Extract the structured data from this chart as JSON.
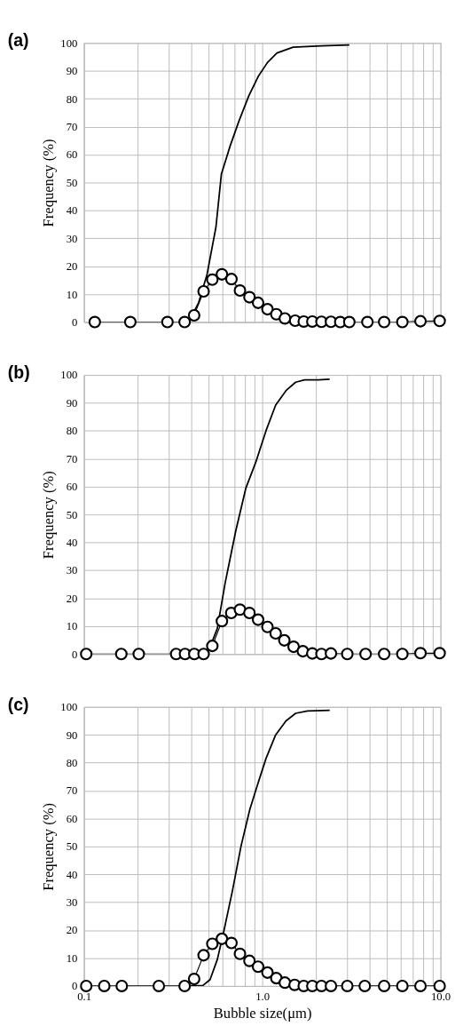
{
  "chart_data": [
    {
      "type": "line",
      "title": "(a)",
      "ylabel": "Frequency (%)",
      "log": "x",
      "grid": true,
      "tick_labels": "y",
      "xlim": [
        0.1,
        10
      ],
      "ylim": [
        0,
        100
      ],
      "xticks": [
        {
          "value": 0.1,
          "label": null
        },
        {
          "value": 0.2,
          "label": null
        },
        {
          "value": 0.3,
          "label": null
        },
        {
          "value": 0.4,
          "label": null
        },
        {
          "value": 0.5,
          "label": null
        },
        {
          "value": 0.6,
          "label": null
        },
        {
          "value": 0.7,
          "label": null
        },
        {
          "value": 0.8,
          "label": null
        },
        {
          "value": 0.9,
          "label": null
        },
        {
          "value": 1,
          "label": null
        },
        {
          "value": 2,
          "label": null
        },
        {
          "value": 3,
          "label": null
        },
        {
          "value": 4,
          "label": null
        },
        {
          "value": 5,
          "label": null
        },
        {
          "value": 6,
          "label": null
        },
        {
          "value": 7,
          "label": null
        },
        {
          "value": 8,
          "label": null
        },
        {
          "value": 9,
          "label": null
        },
        {
          "value": 10,
          "label": null
        }
      ],
      "yticks": [
        0,
        10,
        20,
        30,
        40,
        50,
        60,
        70,
        80,
        90,
        100
      ],
      "series": [
        {
          "marker": "none",
          "color": "#000000",
          "x": [
            0.39,
            0.44,
            0.49,
            0.55,
            0.59,
            0.66,
            0.74,
            0.84,
            0.95,
            1.07,
            1.21,
            1.49,
            1.79,
            2.15,
            3.08
          ],
          "values": [
            0.5,
            7,
            17,
            34,
            53,
            63,
            72,
            81,
            88,
            93,
            96.4,
            98.5,
            98.7,
            99,
            99.3
          ]
        },
        {
          "marker": "circle",
          "color": "#000000",
          "x": [
            0.115,
            0.182,
            0.294,
            0.367,
            0.415,
            0.469,
            0.525,
            0.594,
            0.672,
            0.75,
            0.848,
            0.948,
            1.07,
            1.2,
            1.34,
            1.53,
            1.71,
            1.91,
            2.15,
            2.43,
            2.74,
            3.08,
            3.89,
            4.83,
            6.11,
            7.72,
            9.89
          ],
          "values": [
            0,
            0,
            0,
            0,
            2.4,
            11,
            15.2,
            17.1,
            15.4,
            11.3,
            8.9,
            6.9,
            4.6,
            2.8,
            1.3,
            0.5,
            0.2,
            0.2,
            0.1,
            0.1,
            0,
            0,
            0,
            0,
            0,
            0.3,
            0.4
          ]
        }
      ]
    },
    {
      "type": "line",
      "title": "(b)",
      "ylabel": "Frequency (%)",
      "log": "x",
      "grid": true,
      "tick_labels": "y",
      "xlim": [
        0.1,
        10
      ],
      "ylim": [
        0,
        100
      ],
      "xticks": [
        {
          "value": 0.1,
          "label": null
        },
        {
          "value": 0.2,
          "label": null
        },
        {
          "value": 0.3,
          "label": null
        },
        {
          "value": 0.4,
          "label": null
        },
        {
          "value": 0.5,
          "label": null
        },
        {
          "value": 0.6,
          "label": null
        },
        {
          "value": 0.7,
          "label": null
        },
        {
          "value": 0.8,
          "label": null
        },
        {
          "value": 0.9,
          "label": null
        },
        {
          "value": 1,
          "label": null
        },
        {
          "value": 2,
          "label": null
        },
        {
          "value": 3,
          "label": null
        },
        {
          "value": 4,
          "label": null
        },
        {
          "value": 5,
          "label": null
        },
        {
          "value": 6,
          "label": null
        },
        {
          "value": 7,
          "label": null
        },
        {
          "value": 8,
          "label": null
        },
        {
          "value": 9,
          "label": null
        },
        {
          "value": 10,
          "label": null
        }
      ],
      "yticks": [
        0,
        10,
        20,
        30,
        40,
        50,
        60,
        70,
        80,
        90,
        100
      ],
      "series": [
        {
          "marker": "none",
          "color": "#000000",
          "x": [
            0.5,
            0.56,
            0.62,
            0.71,
            0.81,
            0.92,
            1.05,
            1.19,
            1.36,
            1.54,
            1.73,
            2.07,
            2.39
          ],
          "values": [
            1,
            9.2,
            25.6,
            44,
            59.5,
            68.7,
            80,
            89.2,
            94.4,
            97.4,
            98.2,
            98.2,
            98.5
          ]
        },
        {
          "marker": "circle",
          "color": "#000000",
          "x": [
            0.103,
            0.162,
            0.203,
            0.329,
            0.369,
            0.416,
            0.469,
            0.525,
            0.594,
            0.67,
            0.75,
            0.848,
            0.948,
            1.07,
            1.19,
            1.33,
            1.5,
            1.69,
            1.91,
            2.15,
            2.43,
            3.0,
            3.8,
            4.83,
            6.11,
            7.72,
            9.89
          ],
          "values": [
            0,
            0,
            0,
            0,
            0,
            0,
            0,
            2.9,
            11.8,
            14.7,
            15.9,
            14.7,
            12.3,
            9.7,
            7.4,
            4.9,
            2.6,
            1,
            0.2,
            0,
            0.2,
            0,
            0,
            0,
            0,
            0.3,
            0.3
          ]
        }
      ]
    },
    {
      "type": "line",
      "title": "(c)",
      "ylabel": "Frequency (%)",
      "xlabel": "Bubble size(μm)",
      "log": "x",
      "grid": true,
      "xlim": [
        0.1,
        10
      ],
      "ylim": [
        0,
        100
      ],
      "xticks": [
        {
          "value": 0.1,
          "label": "0.1"
        },
        {
          "value": 0.2,
          "label": null
        },
        {
          "value": 0.3,
          "label": null
        },
        {
          "value": 0.4,
          "label": null
        },
        {
          "value": 0.5,
          "label": null
        },
        {
          "value": 0.6,
          "label": null
        },
        {
          "value": 0.7,
          "label": null
        },
        {
          "value": 0.8,
          "label": null
        },
        {
          "value": 0.9,
          "label": null
        },
        {
          "value": 1,
          "label": "1.0"
        },
        {
          "value": 2,
          "label": null
        },
        {
          "value": 3,
          "label": null
        },
        {
          "value": 4,
          "label": null
        },
        {
          "value": 5,
          "label": null
        },
        {
          "value": 6,
          "label": null
        },
        {
          "value": 7,
          "label": null
        },
        {
          "value": 8,
          "label": null
        },
        {
          "value": 9,
          "label": null
        },
        {
          "value": 10,
          "label": "10.0"
        }
      ],
      "yticks": [
        0,
        10,
        20,
        30,
        40,
        50,
        60,
        70,
        80,
        90,
        100
      ],
      "series": [
        {
          "marker": "none",
          "color": "#000000",
          "x": [
            0.39,
            0.465,
            0.51,
            0.56,
            0.61,
            0.68,
            0.76,
            0.85,
            0.94,
            1.05,
            1.19,
            1.36,
            1.54,
            1.79,
            2.39
          ],
          "values": [
            0,
            0.2,
            2.3,
            9.5,
            19.8,
            34,
            50,
            63,
            72,
            81.5,
            90,
            95,
            97.7,
            98.5,
            98.8
          ]
        },
        {
          "marker": "circle",
          "color": "#000000",
          "x": [
            0.103,
            0.13,
            0.163,
            0.263,
            0.367,
            0.415,
            0.469,
            0.525,
            0.594,
            0.672,
            0.75,
            0.848,
            0.948,
            1.07,
            1.2,
            1.34,
            1.52,
            1.71,
            1.91,
            2.15,
            2.43,
            3.0,
            3.76,
            4.83,
            6.11,
            7.72,
            9.89
          ],
          "values": [
            0,
            0,
            0,
            0,
            0,
            2.5,
            11,
            15.1,
            16.9,
            15.4,
            11.5,
            9,
            6.9,
            4.8,
            2.8,
            1.2,
            0.4,
            0,
            0,
            0,
            0,
            0,
            0,
            0,
            0,
            0,
            0
          ]
        }
      ]
    }
  ]
}
